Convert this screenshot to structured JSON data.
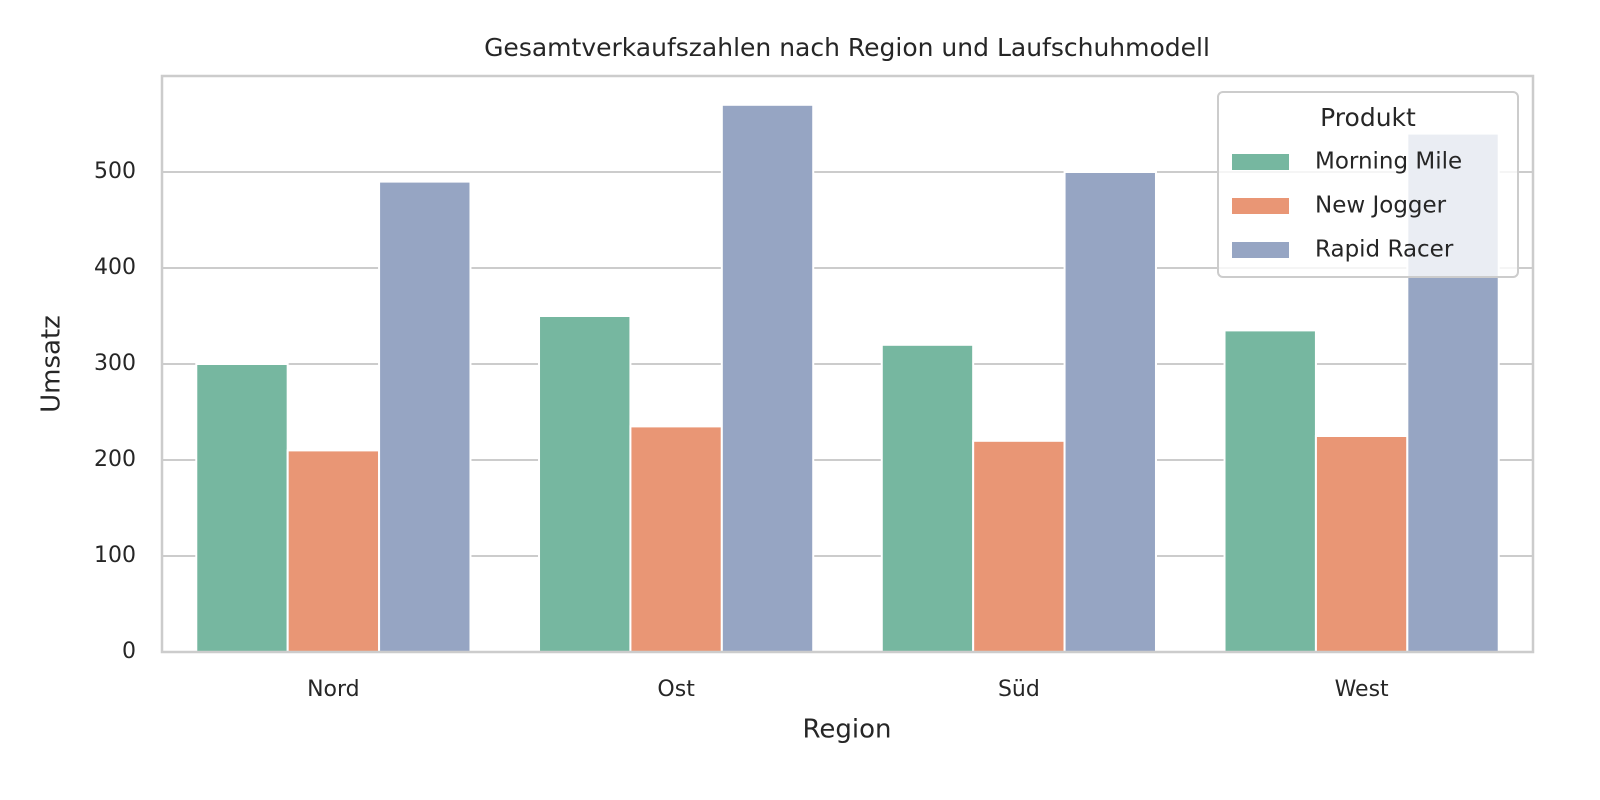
{
  "chart_data": {
    "type": "bar",
    "title": "Gesamtverkaufszahlen nach Region und Laufschuhmodell",
    "x_label": "Region",
    "y_label": "Umsatz",
    "categories": [
      "Nord",
      "Ost",
      "Süd",
      "West"
    ],
    "series": [
      {
        "name": "Morning Mile",
        "color": "#76b7a0",
        "values": [
          300,
          350,
          320,
          335
        ]
      },
      {
        "name": "New Jogger",
        "color": "#e99675",
        "values": [
          210,
          235,
          220,
          225
        ]
      },
      {
        "name": "Rapid Racer",
        "color": "#96a5c3",
        "values": [
          490,
          570,
          500,
          540
        ]
      }
    ],
    "legend_title": "Produkt",
    "legend_position": "upper right",
    "ylim": [
      0,
      600
    ],
    "yticks": [
      0,
      100,
      200,
      300,
      400,
      500
    ],
    "grid": true
  }
}
